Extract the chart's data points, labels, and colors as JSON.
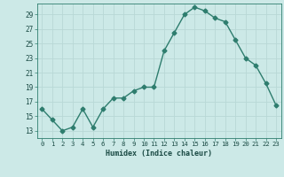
{
  "x": [
    0,
    1,
    2,
    3,
    4,
    5,
    6,
    7,
    8,
    9,
    10,
    11,
    12,
    13,
    14,
    15,
    16,
    17,
    18,
    19,
    20,
    21,
    22,
    23
  ],
  "y": [
    16.0,
    14.5,
    13.0,
    13.5,
    16.0,
    13.5,
    16.0,
    17.5,
    17.5,
    18.5,
    19.0,
    19.0,
    24.0,
    26.5,
    29.0,
    30.0,
    29.5,
    28.5,
    28.0,
    25.5,
    23.0,
    22.0,
    19.5,
    16.5
  ],
  "line_color": "#2e7d6e",
  "marker": "D",
  "marker_size": 2.5,
  "bg_color": "#cce9e7",
  "grid_color": "#b8d8d6",
  "xlabel": "Humidex (Indice chaleur)",
  "ylabel": "",
  "xlim": [
    -0.5,
    23.5
  ],
  "ylim": [
    12,
    30.5
  ],
  "yticks": [
    13,
    15,
    17,
    19,
    21,
    23,
    25,
    27,
    29
  ],
  "xticks": [
    0,
    1,
    2,
    3,
    4,
    5,
    6,
    7,
    8,
    9,
    10,
    11,
    12,
    13,
    14,
    15,
    16,
    17,
    18,
    19,
    20,
    21,
    22,
    23
  ]
}
